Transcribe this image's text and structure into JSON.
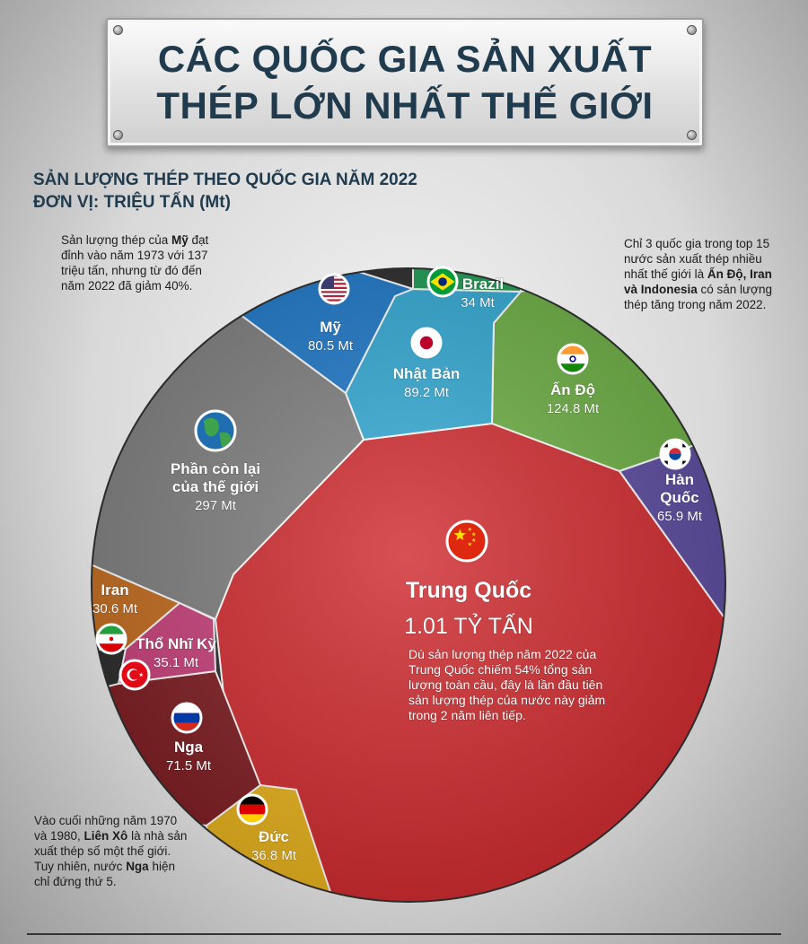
{
  "header": {
    "title_line1": "CÁC QUỐC GIA SẢN XUẤT",
    "title_line2": "THÉP LỚN NHẤT THẾ GIỚI"
  },
  "subtitle": {
    "line1": "SẢN LƯỢNG THÉP THEO QUỐC GIA NĂM 2022",
    "line2": "ĐƠN VỊ: TRIỆU TẤN (Mt)"
  },
  "notes": {
    "usa": {
      "l1a": "Sản lượng thép của ",
      "l1b": "Mỹ",
      "l1c": " đạt",
      "l2": "đỉnh vào năm 1973 với 137",
      "l3": "triệu tấn, nhưng từ đó đến",
      "l4": "năm 2022 đã giảm 40%."
    },
    "top15": {
      "l1": "Chỉ 3 quốc gia trong top 15",
      "l2": "nước sản xuất thép nhiều",
      "l3a": "nhất thế giới là ",
      "l3b": "Ấn Độ, Iran",
      "l4a": "và Indonesia",
      "l4b": " có sản lượng",
      "l5": "thép tăng trong năm 2022."
    },
    "russia": {
      "l1": "Vào cuối những năm 1970",
      "l2a": "và 1980, ",
      "l2b": "Liên Xô",
      "l2c": " là nhà sản",
      "l3": "xuất thép số một thế giới.",
      "l4a": "Tuy nhiên, nước ",
      "l4b": "Nga",
      "l4c": " hiện",
      "l5": "chỉ đứng thứ 5."
    }
  },
  "chart_data": {
    "type": "voronoi-treemap",
    "unit": "Mt",
    "regions": [
      {
        "name": "Trung Quốc",
        "value": 1010,
        "label": "1.01 TỶ TẤN",
        "color": "#cf2a2e",
        "flag": "china-flag",
        "note": [
          "Dù sản lượng thép năm 2022 của",
          "Trung Quốc chiếm 54% tổng sản",
          "lượng toàn cầu, đây là lần đầu tiên",
          "sản lượng thép của nước này giảm",
          "trong 2 năm liên tiếp."
        ]
      },
      {
        "name": "Phần còn lại của thế giới",
        "name_lines": [
          "Phần còn lại",
          "của thế giới"
        ],
        "value": 297,
        "label": "297 Mt",
        "color": "#7f7f7f",
        "flag": "globe"
      },
      {
        "name": "Ấn Độ",
        "value": 124.8,
        "label": "124.8 Mt",
        "color": "#6cae44",
        "flag": "india-flag"
      },
      {
        "name": "Nhật Bản",
        "value": 89.2,
        "label": "89.2 Mt",
        "color": "#33a9d3",
        "flag": "japan-flag"
      },
      {
        "name": "Mỹ",
        "value": 80.5,
        "label": "80.5 Mt",
        "color": "#1f78c8",
        "flag": "usa-flag"
      },
      {
        "name": "Nga",
        "value": 71.5,
        "label": "71.5 Mt",
        "color": "#7e1d22",
        "flag": "russia-flag"
      },
      {
        "name": "Hàn Quốc",
        "name_lines": [
          "Hàn",
          "Quốc"
        ],
        "value": 65.9,
        "label": "65.9 Mt",
        "color": "#5b4a9e",
        "flag": "korea-flag"
      },
      {
        "name": "Đức",
        "value": 36.8,
        "label": "36.8 Mt",
        "color": "#e8b21c",
        "flag": "germany-flag"
      },
      {
        "name": "Thổ Nhĩ Kỳ",
        "value": 35.1,
        "label": "35.1 Mt",
        "color": "#c8407a",
        "flag": "turkey-flag"
      },
      {
        "name": "Brazil",
        "value": 34,
        "label": "34 Mt",
        "color": "#1f9c52",
        "flag": "brazil-flag"
      },
      {
        "name": "Iran",
        "value": 30.6,
        "label": "30.6 Mt",
        "color": "#c46d1f",
        "flag": "iran-flag"
      }
    ]
  }
}
